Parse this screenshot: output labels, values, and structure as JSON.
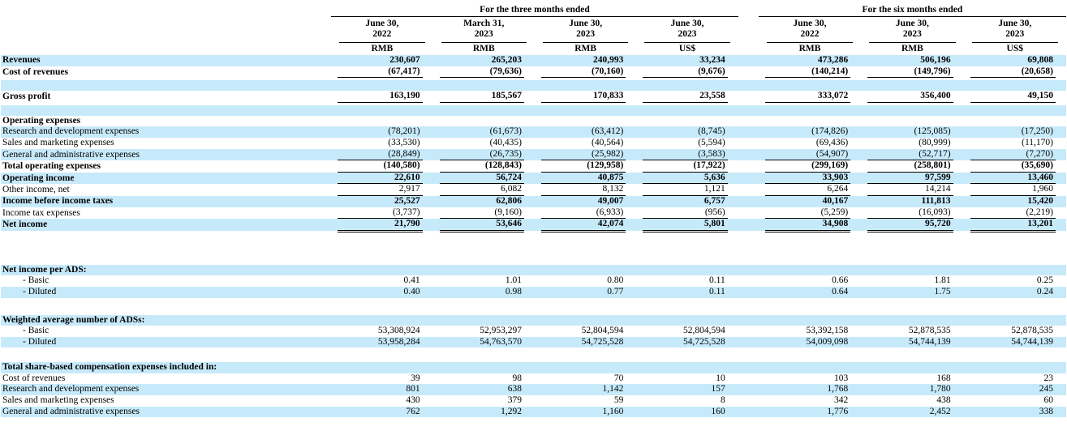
{
  "page": {
    "background": "#ffffff",
    "shade_color": "#C7EAFB",
    "rule_color": "#000000"
  },
  "table": {
    "groups": [
      {
        "title": "For the three months ended",
        "columns": [
          {
            "date_line1": "June 30,",
            "date_line2": "2022",
            "unit": "RMB"
          },
          {
            "date_line1": "March 31,",
            "date_line2": "2023",
            "unit": "RMB"
          },
          {
            "date_line1": "June 30,",
            "date_line2": "2023",
            "unit": "RMB"
          },
          {
            "date_line1": "June 30,",
            "date_line2": "2023",
            "unit": "US$"
          }
        ]
      },
      {
        "title": "For the six months ended",
        "columns": [
          {
            "date_line1": "June 30,",
            "date_line2": "2022",
            "unit": "RMB"
          },
          {
            "date_line1": "June 30,",
            "date_line2": "2023",
            "unit": "RMB"
          },
          {
            "date_line1": "June 30,",
            "date_line2": "2023",
            "unit": "US$"
          }
        ]
      }
    ],
    "rows": [
      {
        "label": "Revenues",
        "bold": true,
        "bold_values": true,
        "shade": true,
        "values": [
          "230,607",
          "265,203",
          "240,993",
          "33,234",
          "473,286",
          "506,196",
          "69,808"
        ]
      },
      {
        "label": "Cost of revenues",
        "bold": true,
        "bold_values": true,
        "shade": false,
        "rule": "single",
        "values": [
          "(67,417)",
          "(79,636)",
          "(70,160)",
          "(9,676)",
          "(140,214)",
          "(149,796)",
          "(20,658)"
        ]
      },
      {
        "spacer": true,
        "shade": false,
        "height": 3
      },
      {
        "spacer": true,
        "shade": true,
        "height": 13
      },
      {
        "label": "Gross profit",
        "bold": true,
        "bold_values": true,
        "shade": false,
        "rule": "single",
        "values": [
          "163,190",
          "185,567",
          "170,833",
          "23,558",
          "333,072",
          "356,400",
          "49,150"
        ]
      },
      {
        "spacer": true,
        "shade": false,
        "height": 3
      },
      {
        "spacer": true,
        "shade": true,
        "height": 13
      },
      {
        "label": "Operating expenses",
        "bold": true,
        "shade": false,
        "values": [
          "",
          "",
          "",
          "",
          "",
          "",
          ""
        ]
      },
      {
        "label": "Research and development expenses",
        "shade": true,
        "values": [
          "(78,201)",
          "(61,673)",
          "(63,412)",
          "(8,745)",
          "(174,826)",
          "(125,085)",
          "(17,250)"
        ]
      },
      {
        "label": "Sales and marketing expenses",
        "shade": false,
        "values": [
          "(33,530)",
          "(40,435)",
          "(40,564)",
          "(5,594)",
          "(69,436)",
          "(80,999)",
          "(11,170)"
        ]
      },
      {
        "label": "General and administrative expenses",
        "shade": true,
        "rule": "single",
        "values": [
          "(28,849)",
          "(26,735)",
          "(25,982)",
          "(3,583)",
          "(54,907)",
          "(52,717)",
          "(7,270)"
        ]
      },
      {
        "label": "Total operating expenses",
        "bold": true,
        "bold_values": true,
        "shade": false,
        "rule": "single",
        "values": [
          "(140,580)",
          "(128,843)",
          "(129,958)",
          "(17,922)",
          "(299,169)",
          "(258,801)",
          "(35,690)"
        ]
      },
      {
        "label": "Operating income",
        "bold": true,
        "bold_values": true,
        "shade": true,
        "rule": "single",
        "values": [
          "22,610",
          "56,724",
          "40,875",
          "5,636",
          "33,903",
          "97,599",
          "13,460"
        ]
      },
      {
        "label": "Other income, net",
        "shade": false,
        "rule": "single",
        "values": [
          "2,917",
          "6,082",
          "8,132",
          "1,121",
          "6,264",
          "14,214",
          "1,960"
        ]
      },
      {
        "label": "Income before income taxes",
        "bold": true,
        "bold_values": true,
        "shade": true,
        "values": [
          "25,527",
          "62,806",
          "49,007",
          "6,757",
          "40,167",
          "111,813",
          "15,420"
        ]
      },
      {
        "label": "Income tax expenses",
        "shade": false,
        "rule": "single",
        "values": [
          "(3,737)",
          "(9,160)",
          "(6,933)",
          "(956)",
          "(5,259)",
          "(16,093)",
          "(2,219)"
        ]
      },
      {
        "label": "Net income",
        "bold": true,
        "bold_values": true,
        "shade": true,
        "rule": "double",
        "values": [
          "21,790",
          "53,646",
          "42,074",
          "5,801",
          "34,908",
          "95,720",
          "13,201"
        ]
      },
      {
        "spacer": true,
        "shade": false,
        "height": 37
      },
      {
        "label": "Net income per ADS:",
        "bold": true,
        "shade": true,
        "values": [
          "",
          "",
          "",
          "",
          "",
          "",
          ""
        ]
      },
      {
        "label": "- Basic",
        "indent": true,
        "shade": false,
        "values": [
          "0.41",
          "1.01",
          "0.80",
          "0.11",
          "0.66",
          "1.81",
          "0.25"
        ]
      },
      {
        "label": "- Diluted",
        "indent": true,
        "shade": true,
        "values": [
          "0.40",
          "0.98",
          "0.77",
          "0.11",
          "0.64",
          "1.75",
          "0.24"
        ]
      },
      {
        "spacer": true,
        "shade": false,
        "height": 21
      },
      {
        "label": "Weighted average number of ADSs:",
        "bold": true,
        "shade": true,
        "values": [
          "",
          "",
          "",
          "",
          "",
          "",
          ""
        ]
      },
      {
        "label": "- Basic",
        "indent": true,
        "shade": false,
        "values": [
          "53,308,924",
          "52,953,297",
          "52,804,594",
          "52,804,594",
          "53,392,158",
          "52,878,535",
          "52,878,535"
        ]
      },
      {
        "label": "- Diluted",
        "indent": true,
        "shade": true,
        "values": [
          "53,958,284",
          "54,763,570",
          "54,725,528",
          "54,725,528",
          "54,009,098",
          "54,744,139",
          "54,744,139"
        ]
      },
      {
        "spacer": true,
        "shade": false,
        "height": 18
      },
      {
        "label": "Total share-based compensation expenses included in:",
        "bold": true,
        "shade": true,
        "values": [
          "",
          "",
          "",
          "",
          "",
          "",
          ""
        ]
      },
      {
        "label": "Cost of revenues",
        "shade": false,
        "values": [
          "39",
          "98",
          "70",
          "10",
          "103",
          "168",
          "23"
        ]
      },
      {
        "label": "Research and development expenses",
        "shade": true,
        "values": [
          "801",
          "638",
          "1,142",
          "157",
          "1,768",
          "1,780",
          "245"
        ]
      },
      {
        "label": "Sales and marketing expenses",
        "shade": false,
        "values": [
          "430",
          "379",
          "59",
          "8",
          "342",
          "438",
          "60"
        ]
      },
      {
        "label": "General and administrative expenses",
        "shade": true,
        "values": [
          "762",
          "1,292",
          "1,160",
          "160",
          "1,776",
          "2,452",
          "338"
        ]
      }
    ]
  }
}
